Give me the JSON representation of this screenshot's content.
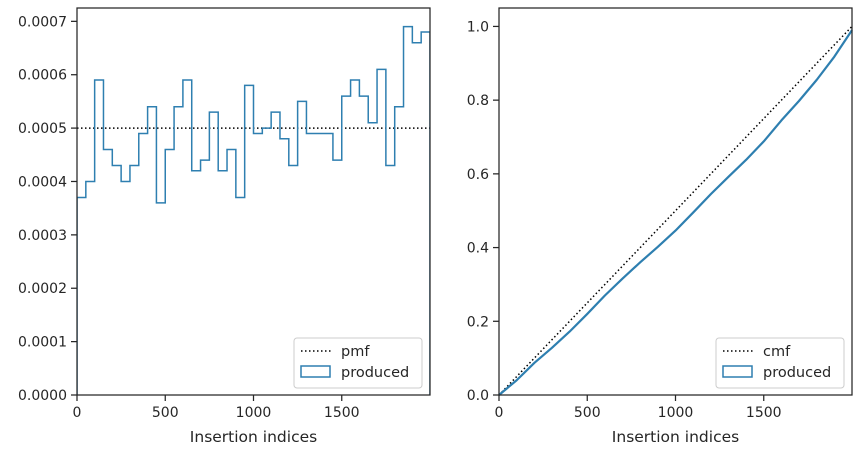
{
  "chart_data": [
    {
      "type": "line",
      "subtype": "step-histogram",
      "xlabel": "Insertion indices",
      "ylabel": "",
      "xlim": [
        0,
        2000
      ],
      "ylim": [
        0,
        0.000725
      ],
      "xticks": [
        0,
        500,
        1000,
        1500
      ],
      "xtick_labels": [
        "0",
        "500",
        "1000",
        "1500"
      ],
      "yticks": [
        0,
        0.0001,
        0.0002,
        0.0003,
        0.0004,
        0.0005,
        0.0006,
        0.0007
      ],
      "ytick_labels": [
        "0.0000",
        "0.0001",
        "0.0002",
        "0.0003",
        "0.0004",
        "0.0005",
        "0.0006",
        "0.0007"
      ],
      "legend_position": "lower-right",
      "grid": false,
      "series": [
        {
          "name": "pmf",
          "style": "dotted",
          "color": "#000000",
          "x": [
            0,
            2000
          ],
          "y": [
            0.0005,
            0.0005
          ]
        },
        {
          "name": "produced",
          "style": "step",
          "color": "#2e7fb0",
          "bin_edges": [
            0,
            50,
            100,
            150,
            200,
            250,
            300,
            350,
            400,
            450,
            500,
            550,
            600,
            650,
            700,
            750,
            800,
            850,
            900,
            950,
            1000,
            1050,
            1100,
            1150,
            1200,
            1250,
            1300,
            1350,
            1400,
            1450,
            1500,
            1550,
            1600,
            1650,
            1700,
            1750,
            1800,
            1850,
            1900,
            1950,
            2000
          ],
          "values": [
            0.00037,
            0.0004,
            0.00059,
            0.00046,
            0.00043,
            0.0004,
            0.00043,
            0.00049,
            0.00054,
            0.00036,
            0.00046,
            0.00054,
            0.00059,
            0.00042,
            0.00044,
            0.00053,
            0.00042,
            0.00046,
            0.00037,
            0.00058,
            0.00049,
            0.0005,
            0.00053,
            0.00048,
            0.00043,
            0.00055,
            0.00049,
            0.00049,
            0.00049,
            0.00044,
            0.00056,
            0.00059,
            0.00056,
            0.00051,
            0.00061,
            0.00043,
            0.00054,
            0.00069,
            0.00066,
            0.00068
          ]
        }
      ]
    },
    {
      "type": "line",
      "subtype": "cumulative-step",
      "xlabel": "Insertion indices",
      "ylabel": "",
      "xlim": [
        0,
        2000
      ],
      "ylim": [
        0,
        1.05
      ],
      "xticks": [
        0,
        500,
        1000,
        1500
      ],
      "xtick_labels": [
        "0",
        "500",
        "1000",
        "1500"
      ],
      "yticks": [
        0,
        0.2,
        0.4,
        0.6,
        0.8,
        1.0
      ],
      "ytick_labels": [
        "0.0",
        "0.2",
        "0.4",
        "0.6",
        "0.8",
        "1.0"
      ],
      "legend_position": "lower-right",
      "grid": false,
      "series": [
        {
          "name": "cmf",
          "style": "dotted",
          "color": "#000000",
          "x": [
            0,
            2000
          ],
          "y": [
            0,
            1.0
          ]
        },
        {
          "name": "produced",
          "style": "step",
          "color": "#2e7fb0",
          "x": [
            0,
            100,
            200,
            300,
            400,
            500,
            600,
            700,
            800,
            900,
            1000,
            1100,
            1200,
            1300,
            1400,
            1500,
            1600,
            1700,
            1800,
            1900,
            2000
          ],
          "y": [
            0,
            0.04,
            0.087,
            0.128,
            0.172,
            0.22,
            0.27,
            0.316,
            0.36,
            0.402,
            0.446,
            0.495,
            0.545,
            0.592,
            0.638,
            0.688,
            0.745,
            0.798,
            0.855,
            0.918,
            0.99
          ]
        }
      ]
    }
  ]
}
